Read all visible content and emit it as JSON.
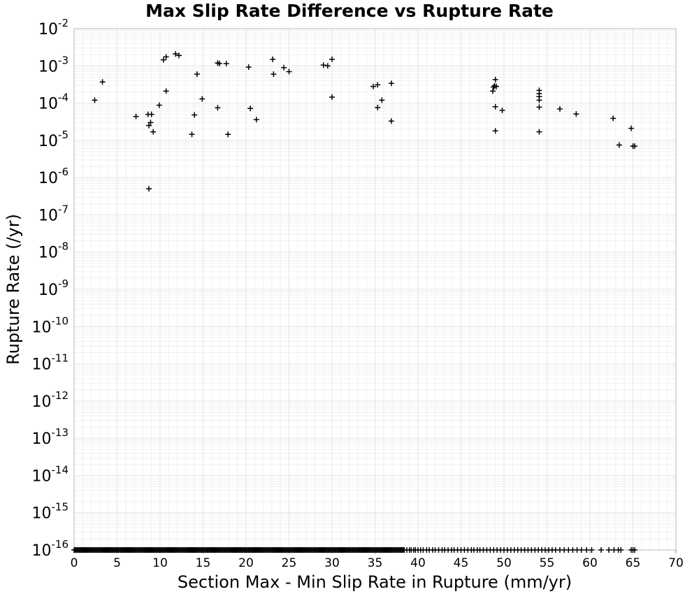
{
  "chart_data": {
    "type": "scatter",
    "title": "Max Slip Rate Difference vs Rupture Rate",
    "xlabel": "Section Max - Min Slip Rate in Rupture (mm/yr)",
    "ylabel": "Rupture Rate (/yr)",
    "xlim": [
      0,
      70
    ],
    "ylim": [
      1e-16,
      0.01
    ],
    "yscale": "log",
    "x_ticks": [
      0,
      5,
      10,
      15,
      20,
      25,
      30,
      35,
      40,
      45,
      50,
      55,
      60,
      65,
      70
    ],
    "y_tick_exponents": [
      -2,
      -3,
      -4,
      -5,
      -6,
      -7,
      -8,
      -9,
      -10,
      -11,
      -12,
      -13,
      -14,
      -15,
      -16
    ],
    "y_tick_base": "10",
    "grid": true,
    "marker": "plus",
    "series": [
      {
        "points": [
          {
            "x": 2.4,
            "y": 0.00012
          },
          {
            "x": 3.3,
            "y": 0.00037
          },
          {
            "x": 7.2,
            "y": 4.4e-05
          },
          {
            "x": 8.6,
            "y": 5e-05
          },
          {
            "x": 8.7,
            "y": 2.5e-05
          },
          {
            "x": 8.7,
            "y": 5e-07
          },
          {
            "x": 8.9,
            "y": 3e-05
          },
          {
            "x": 9.0,
            "y": 5e-05
          },
          {
            "x": 9.2,
            "y": 1.7e-05
          },
          {
            "x": 9.9,
            "y": 8.8e-05
          },
          {
            "x": 10.4,
            "y": 0.00145
          },
          {
            "x": 10.7,
            "y": 0.00175
          },
          {
            "x": 10.7,
            "y": 0.00021
          },
          {
            "x": 11.8,
            "y": 0.0021
          },
          {
            "x": 12.2,
            "y": 0.0019
          },
          {
            "x": 13.7,
            "y": 1.45e-05
          },
          {
            "x": 14.0,
            "y": 4.8e-05
          },
          {
            "x": 14.3,
            "y": 0.0006
          },
          {
            "x": 14.9,
            "y": 0.00013
          },
          {
            "x": 16.7,
            "y": 7.5e-05
          },
          {
            "x": 16.7,
            "y": 0.0012
          },
          {
            "x": 16.9,
            "y": 0.00115
          },
          {
            "x": 17.7,
            "y": 0.00115
          },
          {
            "x": 17.9,
            "y": 1.45e-05
          },
          {
            "x": 20.3,
            "y": 0.00093
          },
          {
            "x": 20.5,
            "y": 7.2e-05
          },
          {
            "x": 21.2,
            "y": 3.6e-05
          },
          {
            "x": 23.1,
            "y": 0.0015
          },
          {
            "x": 23.2,
            "y": 0.0006
          },
          {
            "x": 24.4,
            "y": 0.0009
          },
          {
            "x": 25.0,
            "y": 0.0007
          },
          {
            "x": 29.0,
            "y": 0.00105
          },
          {
            "x": 29.5,
            "y": 0.001
          },
          {
            "x": 30.0,
            "y": 0.0015
          },
          {
            "x": 30.0,
            "y": 0.000145
          },
          {
            "x": 34.8,
            "y": 0.00028
          },
          {
            "x": 35.3,
            "y": 0.00031
          },
          {
            "x": 35.3,
            "y": 7.6e-05
          },
          {
            "x": 35.8,
            "y": 0.00012
          },
          {
            "x": 36.9,
            "y": 0.00034
          },
          {
            "x": 36.9,
            "y": 3.3e-05
          },
          {
            "x": 48.7,
            "y": 0.00021
          },
          {
            "x": 48.8,
            "y": 0.00027
          },
          {
            "x": 48.9,
            "y": 0.00029
          },
          {
            "x": 49.0,
            "y": 0.00043
          },
          {
            "x": 49.0,
            "y": 8e-05
          },
          {
            "x": 49.1,
            "y": 0.00028
          },
          {
            "x": 49.0,
            "y": 1.8e-05
          },
          {
            "x": 49.8,
            "y": 6.4e-05
          },
          {
            "x": 54.1,
            "y": 0.00022
          },
          {
            "x": 54.1,
            "y": 0.00018
          },
          {
            "x": 54.1,
            "y": 0.00015
          },
          {
            "x": 54.1,
            "y": 0.00012
          },
          {
            "x": 54.1,
            "y": 7.8e-05
          },
          {
            "x": 54.1,
            "y": 1.7e-05
          },
          {
            "x": 56.5,
            "y": 7e-05
          },
          {
            "x": 58.4,
            "y": 5.1e-05
          },
          {
            "x": 62.7,
            "y": 3.9e-05
          },
          {
            "x": 63.4,
            "y": 7.5e-06
          },
          {
            "x": 64.8,
            "y": 2.1e-05
          },
          {
            "x": 65.0,
            "y": 7e-06
          },
          {
            "x": 65.2,
            "y": 7e-06
          }
        ],
        "floor_points": {
          "y": 1e-16,
          "x_dense_range": [
            0,
            38.5
          ],
          "x_sparse": [
            38.7,
            39.0,
            39.2,
            39.5,
            39.7,
            40.0,
            40.3,
            40.6,
            41.0,
            41.3,
            41.7,
            42.0,
            42.4,
            42.8,
            43.1,
            43.5,
            43.9,
            44.2,
            44.6,
            45.0,
            45.4,
            45.8,
            46.2,
            46.5,
            46.9,
            47.2,
            47.6,
            48.0,
            48.4,
            48.8,
            49.2,
            49.6,
            50.0,
            50.4,
            50.8,
            51.2,
            51.6,
            52.0,
            52.4,
            52.8,
            53.2,
            53.6,
            54.0,
            54.4,
            54.8,
            55.2,
            55.6,
            56.0,
            56.5,
            57.0,
            57.5,
            58.0,
            58.5,
            59.0,
            59.6,
            60.2,
            61.3,
            62.2,
            62.8,
            63.3,
            63.6,
            64.8,
            65.0,
            65.2
          ]
        }
      }
    ]
  }
}
